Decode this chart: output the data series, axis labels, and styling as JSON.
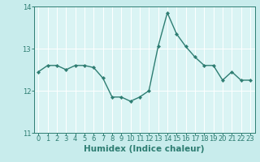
{
  "x": [
    0,
    1,
    2,
    3,
    4,
    5,
    6,
    7,
    8,
    9,
    10,
    11,
    12,
    13,
    14,
    15,
    16,
    17,
    18,
    19,
    20,
    21,
    22,
    23
  ],
  "y": [
    12.45,
    12.6,
    12.6,
    12.5,
    12.6,
    12.6,
    12.55,
    12.3,
    11.85,
    11.85,
    11.75,
    11.85,
    12.0,
    13.05,
    13.85,
    13.35,
    13.05,
    12.8,
    12.6,
    12.6,
    12.25,
    12.45,
    12.25,
    12.25
  ],
  "line_color": "#2e7d72",
  "marker": "D",
  "marker_size": 2.2,
  "line_width": 1.0,
  "xlabel": "Humidex (Indice chaleur)",
  "xlabel_fontsize": 7.5,
  "ylim": [
    11.0,
    14.0
  ],
  "xlim": [
    -0.5,
    23.5
  ],
  "yticks": [
    11,
    12,
    13,
    14
  ],
  "xticks": [
    0,
    1,
    2,
    3,
    4,
    5,
    6,
    7,
    8,
    9,
    10,
    11,
    12,
    13,
    14,
    15,
    16,
    17,
    18,
    19,
    20,
    21,
    22,
    23
  ],
  "bg_color": "#c8ecec",
  "plot_bg_color": "#daf4f4",
  "grid_color": "#ffffff",
  "grid_linewidth": 0.7,
  "tick_fontsize": 6.0,
  "tick_color": "#2e7d72",
  "spine_color": "#2e7d72"
}
